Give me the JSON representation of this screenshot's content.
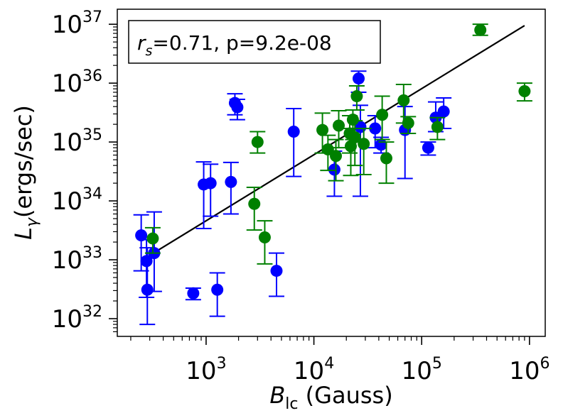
{
  "chart_data": {
    "type": "scatter",
    "xscale": "log",
    "yscale": "log",
    "xlim": [
      150,
      1400000
    ],
    "ylim": [
      5e+31,
      1.8e+37
    ],
    "xlabel": {
      "main": "B",
      "sub": "lc",
      "rest": " (Gauss)"
    },
    "ylabel": {
      "main": "L",
      "sub": "γ",
      "rest": "(ergs/sec)"
    },
    "x_ticks": [
      {
        "value": 1000,
        "base": "10",
        "exp": "3"
      },
      {
        "value": 10000,
        "base": "10",
        "exp": "4"
      },
      {
        "value": 100000,
        "base": "10",
        "exp": "5"
      },
      {
        "value": 1000000,
        "base": "10",
        "exp": "6"
      }
    ],
    "y_ticks": [
      {
        "value": 1e+32,
        "base": "10",
        "exp": "32"
      },
      {
        "value": 1e+33,
        "base": "10",
        "exp": "33"
      },
      {
        "value": 1e+34,
        "base": "10",
        "exp": "34"
      },
      {
        "value": 1e+35,
        "base": "10",
        "exp": "35"
      },
      {
        "value": 1e+36,
        "base": "10",
        "exp": "36"
      },
      {
        "value": 1e+37,
        "base": "10",
        "exp": "37"
      }
    ],
    "annotation": {
      "r_symbol": "r",
      "r_sub": "s",
      "text": "=0.71, p=9.2e-08"
    },
    "fit_line": {
      "x": [
        280,
        900000
      ],
      "y": [
        1.1e+33,
        9.5e+36
      ],
      "color": "#000000"
    },
    "series": [
      {
        "name": "blue",
        "color": "#0000ff",
        "points": [
          {
            "x": 250,
            "y": 2.6e+33,
            "ylo": 6.5e+32,
            "yhi": 5.8e+33
          },
          {
            "x": 280,
            "y": 9.5e+32,
            "ylo": 2.3e+32,
            "yhi": 2.2e+33
          },
          {
            "x": 285,
            "y": 3.1e+32,
            "ylo": 8e+31,
            "yhi": 1.6e+33
          },
          {
            "x": 330,
            "y": 1.3e+33,
            "ylo": 2.9e+32,
            "yhi": 6.5e+33
          },
          {
            "x": 760,
            "y": 2.7e+32,
            "ylo": 2.1e+32,
            "yhi": 3.3e+32
          },
          {
            "x": 950,
            "y": 1.9e+34,
            "ylo": 3.4e+33,
            "yhi": 4.6e+34
          },
          {
            "x": 1100,
            "y": 2e+34,
            "ylo": 5.5e+33,
            "yhi": 4.2e+34
          },
          {
            "x": 1270,
            "y": 3.1e+32,
            "ylo": 1.1e+32,
            "yhi": 6e+32
          },
          {
            "x": 1700,
            "y": 2.1e+34,
            "ylo": 6e+33,
            "yhi": 4.5e+34
          },
          {
            "x": 1850,
            "y": 4.6e+35,
            "ylo": 2.9e+35,
            "yhi": 6.6e+35
          },
          {
            "x": 1950,
            "y": 3.9e+35,
            "ylo": 2.4e+35,
            "yhi": 5.3e+35
          },
          {
            "x": 4500,
            "y": 6.5e+32,
            "ylo": 2.4e+32,
            "yhi": 1.3e+33
          },
          {
            "x": 6500,
            "y": 1.5e+35,
            "ylo": 2.6e+34,
            "yhi": 3.7e+35
          },
          {
            "x": 15500,
            "y": 3.4e+34,
            "ylo": 1.2e+34,
            "yhi": 7e+34
          },
          {
            "x": 26000,
            "y": 1.2e+36,
            "ylo": 7e+35,
            "yhi": 1.6e+36
          },
          {
            "x": 27000,
            "y": 1.8e+35,
            "ylo": 1.2e+34,
            "yhi": 4.2e+35
          },
          {
            "x": 37000,
            "y": 1.7e+35,
            "ylo": 8e+34,
            "yhi": 2.8e+35
          },
          {
            "x": 42000,
            "y": 9e+34,
            "ylo": 6.5e+34,
            "yhi": 1.2e+35
          },
          {
            "x": 70000,
            "y": 1.6e+35,
            "ylo": 2.4e+34,
            "yhi": 4e+35
          },
          {
            "x": 115000,
            "y": 8e+34,
            "ylo": 6e+34,
            "yhi": 1e+35
          },
          {
            "x": 135000,
            "y": 2.6e+35,
            "ylo": 1.5e+35,
            "yhi": 4.8e+35
          },
          {
            "x": 160000,
            "y": 3.3e+35,
            "ylo": 1.7e+35,
            "yhi": 5.6e+35
          }
        ]
      },
      {
        "name": "green",
        "color": "#008000",
        "points": [
          {
            "x": 320,
            "y": 2.3e+33,
            "ylo": 1.3e+33,
            "yhi": 3.5e+33
          },
          {
            "x": 2800,
            "y": 8.9e+33,
            "ylo": 3.2e+33,
            "yhi": 1.7e+34
          },
          {
            "x": 3000,
            "y": 1e+35,
            "ylo": 6.5e+34,
            "yhi": 1.5e+35
          },
          {
            "x": 3500,
            "y": 2.4e+33,
            "ylo": 8.5e+32,
            "yhi": 4.6e+33
          },
          {
            "x": 12000,
            "y": 1.6e+35,
            "ylo": 6.5e+34,
            "yhi": 3.1e+35
          },
          {
            "x": 13500,
            "y": 7.5e+34,
            "ylo": 3.3e+34,
            "yhi": 1.3e+35
          },
          {
            "x": 16000,
            "y": 5.8e+34,
            "ylo": 2.2e+34,
            "yhi": 1.1e+35
          },
          {
            "x": 17000,
            "y": 1.9e+35,
            "ylo": 8e+34,
            "yhi": 3.4e+35
          },
          {
            "x": 21500,
            "y": 1.4e+35,
            "ylo": 6.5e+34,
            "yhi": 2.8e+35
          },
          {
            "x": 22000,
            "y": 8.5e+34,
            "ylo": 2.7e+34,
            "yhi": 1.7e+35
          },
          {
            "x": 23000,
            "y": 2.4e+35,
            "ylo": 1.1e+35,
            "yhi": 3.5e+35
          },
          {
            "x": 24000,
            "y": 1.2e+35,
            "ylo": 4e+34,
            "yhi": 2.3e+35
          },
          {
            "x": 25000,
            "y": 6e+35,
            "ylo": 3.5e+35,
            "yhi": 9e+35
          },
          {
            "x": 29000,
            "y": 9.3e+34,
            "ylo": 2.8e+34,
            "yhi": 1.7e+35
          },
          {
            "x": 43000,
            "y": 2.9e+35,
            "ylo": 1.1e+35,
            "yhi": 6e+35
          },
          {
            "x": 47000,
            "y": 5.3e+34,
            "ylo": 2e+34,
            "yhi": 1e+35
          },
          {
            "x": 68000,
            "y": 5.1e+35,
            "ylo": 2.1e+35,
            "yhi": 9.5e+35
          },
          {
            "x": 75000,
            "y": 2.1e+35,
            "ylo": 1.4e+35,
            "yhi": 2.7e+35
          },
          {
            "x": 140000,
            "y": 1.8e+35,
            "ylo": 1.1e+35,
            "yhi": 2.6e+35
          },
          {
            "x": 350000,
            "y": 8e+36,
            "ylo": 6.5e+36,
            "yhi": 1e+37
          },
          {
            "x": 900000,
            "y": 7.3e+35,
            "ylo": 5e+35,
            "yhi": 1e+36
          }
        ]
      }
    ]
  }
}
